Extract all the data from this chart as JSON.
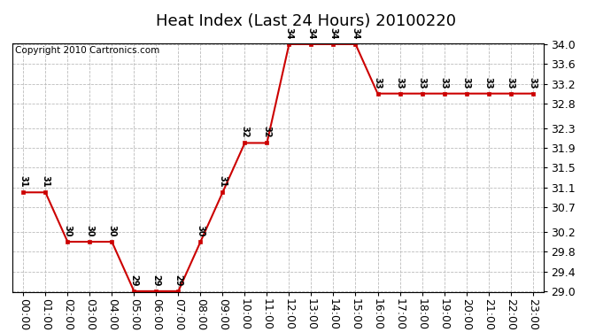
{
  "title": "Heat Index (Last 24 Hours) 20100220",
  "copyright": "Copyright 2010 Cartronics.com",
  "hours": [
    "00:00",
    "01:00",
    "02:00",
    "03:00",
    "04:00",
    "05:00",
    "06:00",
    "07:00",
    "08:00",
    "09:00",
    "10:00",
    "11:00",
    "12:00",
    "13:00",
    "14:00",
    "15:00",
    "16:00",
    "17:00",
    "18:00",
    "19:00",
    "20:00",
    "21:00",
    "22:00",
    "23:00"
  ],
  "values": [
    31,
    31,
    30,
    30,
    30,
    29,
    29,
    29,
    30,
    31,
    32,
    32,
    34,
    34,
    34,
    34,
    33,
    33,
    33,
    33,
    33,
    33,
    33,
    33
  ],
  "line_color": "#cc0000",
  "marker_color": "#cc0000",
  "bg_color": "#ffffff",
  "grid_color": "#bbbbbb",
  "ylim_min": 29.0,
  "ylim_max": 34.0,
  "yticks": [
    29.0,
    29.4,
    29.8,
    30.2,
    30.7,
    31.1,
    31.5,
    31.9,
    32.3,
    32.8,
    33.2,
    33.6,
    34.0
  ],
  "title_fontsize": 13,
  "label_fontsize": 9,
  "annot_fontsize": 7,
  "copyright_fontsize": 7.5
}
